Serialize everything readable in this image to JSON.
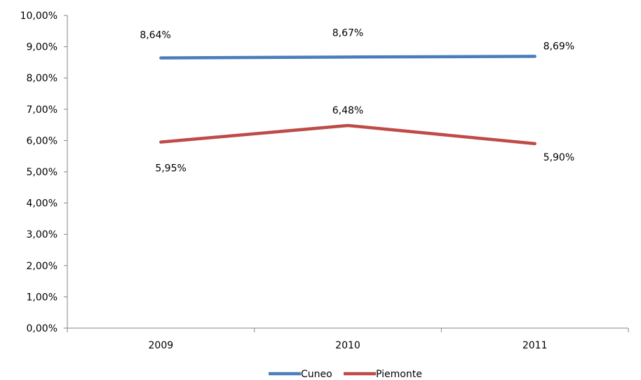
{
  "chart_data": {
    "type": "line",
    "categories": [
      "2009",
      "2010",
      "2011"
    ],
    "series": [
      {
        "name": "Cuneo",
        "values": [
          8.64,
          8.67,
          8.69
        ],
        "labels": [
          "8,64%",
          "8,67%",
          "8,69%"
        ],
        "color": "#4a7ebb"
      },
      {
        "name": "Piemonte",
        "values": [
          5.95,
          6.48,
          5.9
        ],
        "labels": [
          "5,95%",
          "6,48%",
          "5,90%"
        ],
        "color": "#be4b48"
      }
    ],
    "ylim": [
      0,
      10
    ],
    "y_ticks": [
      0,
      1,
      2,
      3,
      4,
      5,
      6,
      7,
      8,
      9,
      10
    ],
    "y_tick_labels": [
      "0,00%",
      "1,00%",
      "2,00%",
      "3,00%",
      "4,00%",
      "5,00%",
      "6,00%",
      "7,00%",
      "8,00%",
      "9,00%",
      "10,00%"
    ],
    "grid": false,
    "legend_position": "bottom"
  }
}
